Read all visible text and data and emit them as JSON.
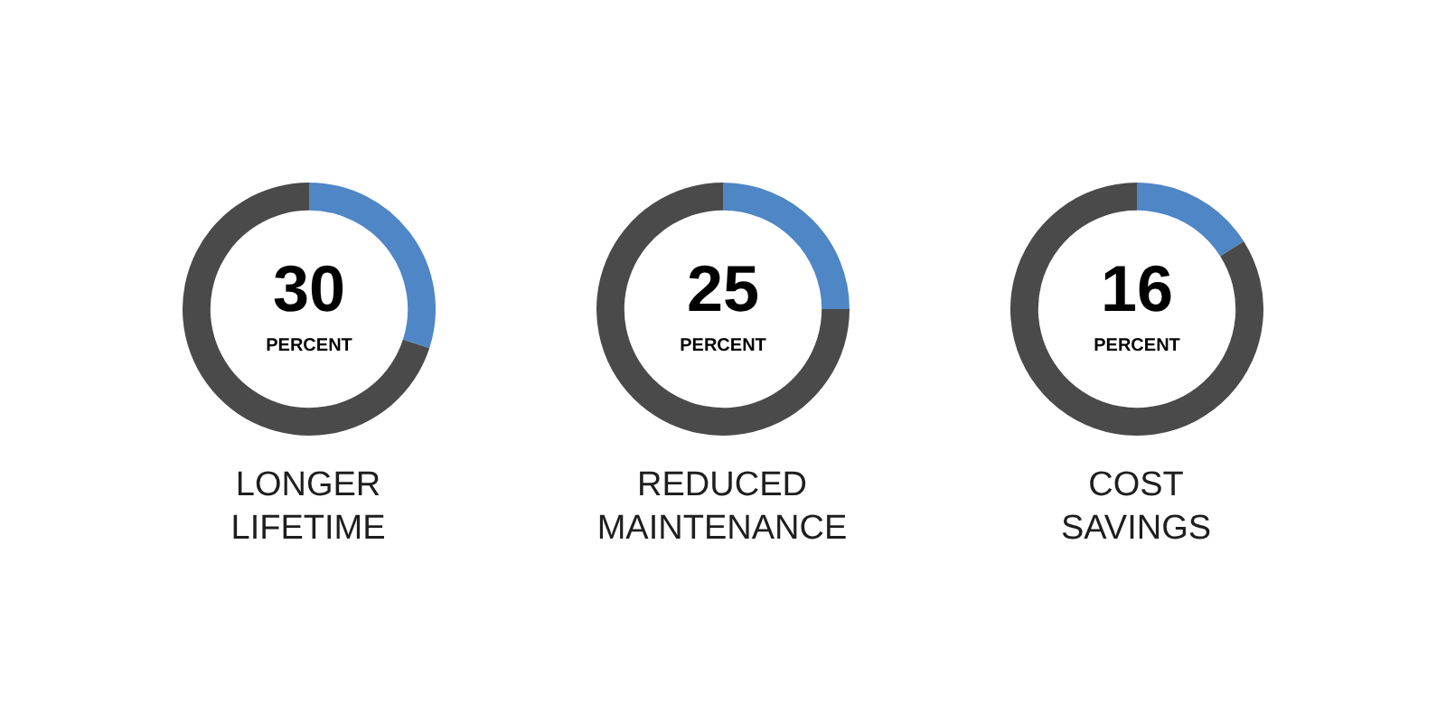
{
  "chart_data": [
    {
      "type": "donut",
      "title": "LONGER LIFETIME",
      "categories": [
        null,
        null
      ],
      "values": [
        30,
        70
      ],
      "colors": [
        "#4e86c6",
        "#4a4a4a"
      ],
      "value_labels": [
        "30",
        null
      ],
      "annotations": [
        "PERCENT"
      ]
    },
    {
      "type": "donut",
      "title": "REDUCED MAINTENANCE",
      "categories": [
        null,
        null
      ],
      "values": [
        25,
        75
      ],
      "colors": [
        "#4e86c6",
        "#4a4a4a"
      ],
      "value_labels": [
        "25",
        null
      ],
      "annotations": [
        "PERCENT"
      ]
    },
    {
      "type": "donut",
      "title": "COST SAVINGS",
      "categories": [
        null,
        null
      ],
      "values": [
        16,
        84
      ],
      "colors": [
        "#4e86c6",
        "#4a4a4a"
      ],
      "value_labels": [
        "16",
        null
      ],
      "annotations": [
        "PERCENT"
      ]
    }
  ]
}
